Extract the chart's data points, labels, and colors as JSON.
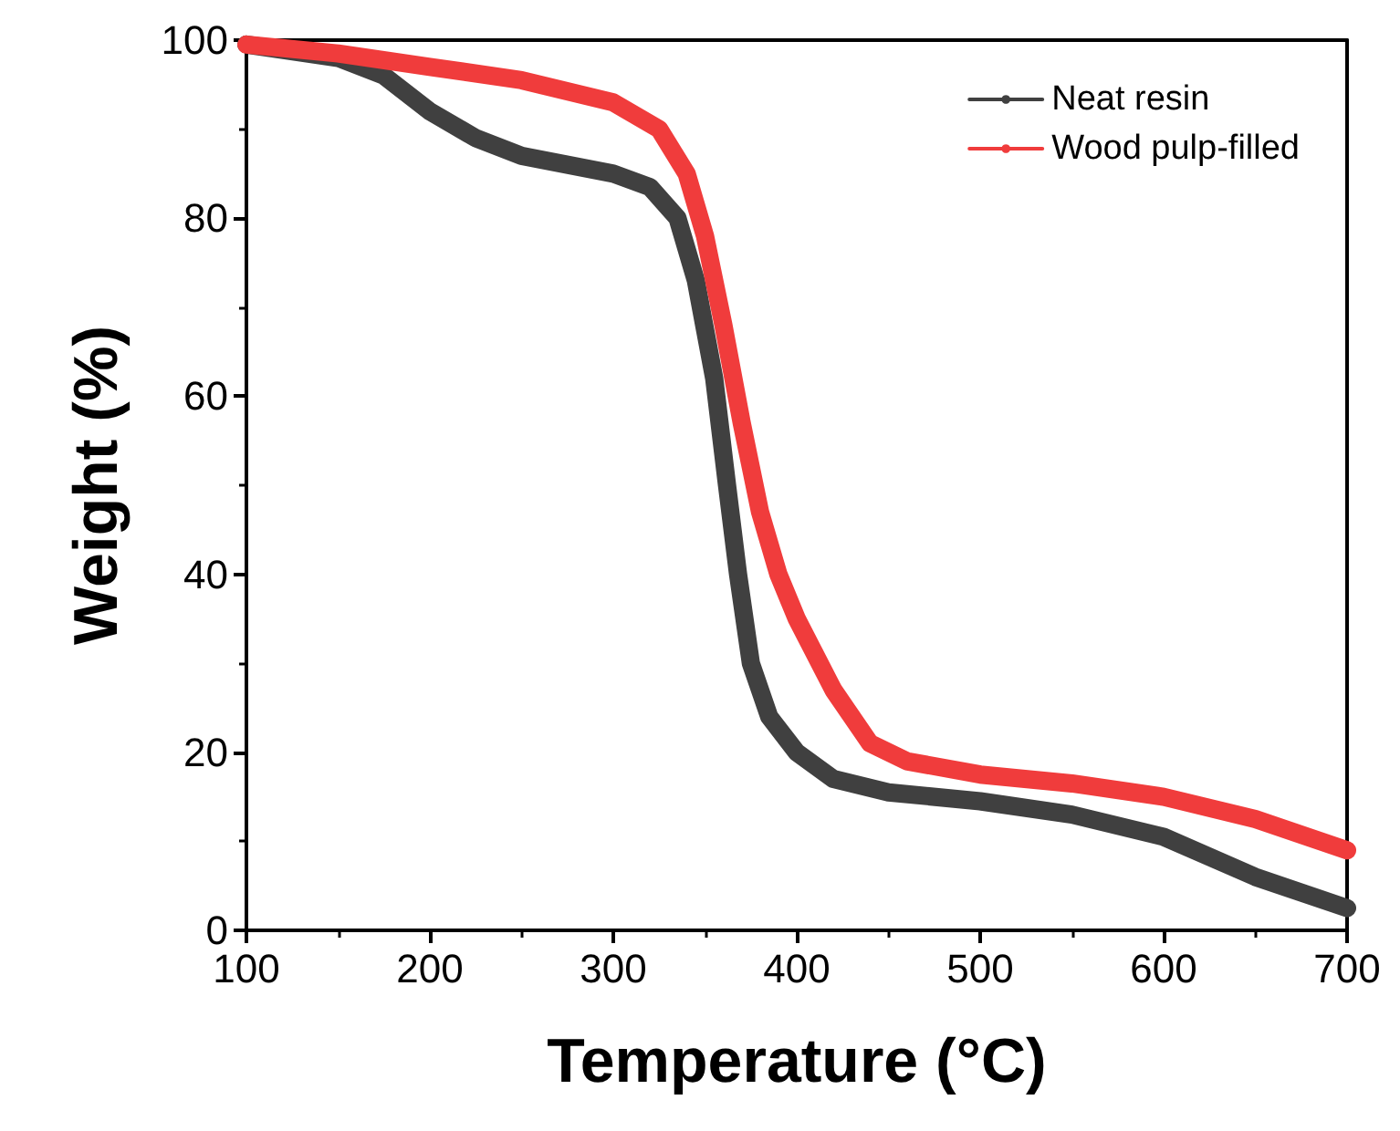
{
  "chart_data": {
    "type": "line",
    "xlabel": "Temperature (°C)",
    "ylabel": "Weight (%)",
    "xlim": [
      100,
      700
    ],
    "xticks": [
      100,
      200,
      300,
      400,
      500,
      600,
      700
    ],
    "ylim": [
      0,
      100
    ],
    "yticks": [
      0,
      20,
      40,
      60,
      80,
      100
    ],
    "grid": false,
    "legend": "top right",
    "series": [
      {
        "name": "Neat resin",
        "color": "#404040",
        "x": [
          100,
          150,
          175,
          200,
          225,
          250,
          275,
          300,
          320,
          335,
          345,
          355,
          362,
          368,
          375,
          385,
          400,
          420,
          450,
          500,
          550,
          600,
          650,
          700
        ],
        "values": [
          99.5,
          98,
          96,
          92,
          89,
          87,
          86,
          85,
          83.5,
          80,
          73,
          62,
          50,
          40,
          30,
          24,
          20,
          17,
          15.5,
          14.5,
          13,
          10.5,
          6,
          2.5
        ]
      },
      {
        "name": "Wood pulp-filled",
        "color": "#f03c3c",
        "x": [
          100,
          150,
          200,
          250,
          300,
          325,
          340,
          350,
          360,
          370,
          380,
          390,
          400,
          420,
          440,
          460,
          500,
          550,
          600,
          650,
          700
        ],
        "values": [
          99.5,
          98.5,
          97,
          95.5,
          93,
          90,
          85,
          78,
          68,
          57,
          47,
          40,
          35,
          27,
          21,
          19,
          17.5,
          16.5,
          15,
          12.5,
          9
        ]
      }
    ]
  }
}
